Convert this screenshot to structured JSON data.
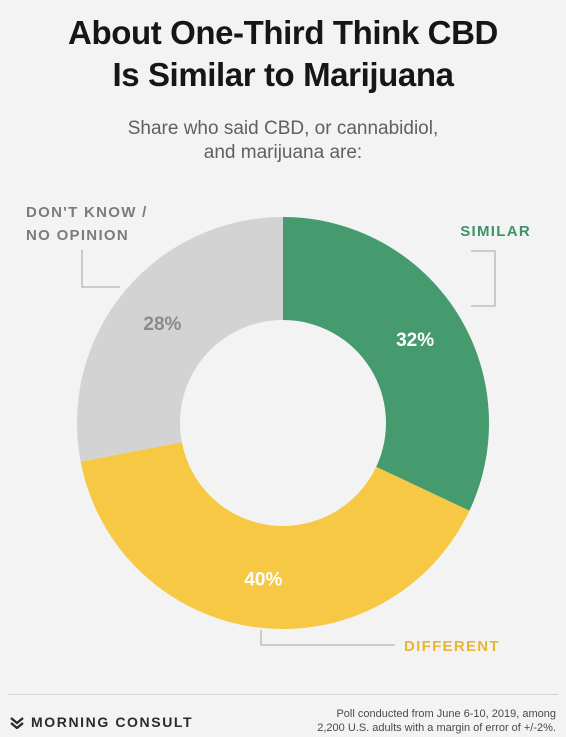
{
  "title_line1": "About One-Third Think CBD",
  "title_line2": "Is Similar to Marijuana",
  "subtitle_line1": "Share who said CBD, or cannabidiol,",
  "subtitle_line2": "and marijuana are:",
  "chart_data": {
    "type": "pie",
    "donut": true,
    "title": "About One-Third Think CBD Is Similar to Marijuana",
    "subtitle": "Share who said CBD, or cannabidiol, and marijuana are:",
    "slices": [
      {
        "label": "SIMILAR",
        "value": 32,
        "value_label": "32%",
        "color": "#459b6d",
        "label_color": "#3f9166"
      },
      {
        "label": "DIFFERENT",
        "value": 40,
        "value_label": "40%",
        "color": "#f6c844",
        "label_color": "#e9b633"
      },
      {
        "label": "DON'T KNOW / NO OPINION",
        "value": 28,
        "value_label": "28%",
        "color": "#d3d3d3",
        "label_color": "#7c7c7c"
      }
    ],
    "label_lines": {
      "similar": "SIMILAR",
      "different": "DIFFERENT",
      "dontknow_1": "DON'T KNOW /",
      "dontknow_2": "NO OPINION"
    }
  },
  "footer": {
    "brand": "MORNING CONSULT",
    "note_line1": "Poll conducted from June 6-10, 2019, among",
    "note_line2": "2,200 U.S. adults with a margin of error of +/-2%."
  },
  "colors": {
    "background": "#f3f3f3",
    "title": "#161616",
    "subtitle": "#606060",
    "leader_line": "#b5b5b5",
    "inner_label_light": "#ffffff",
    "inner_label_dark": "#8a8a8a"
  }
}
